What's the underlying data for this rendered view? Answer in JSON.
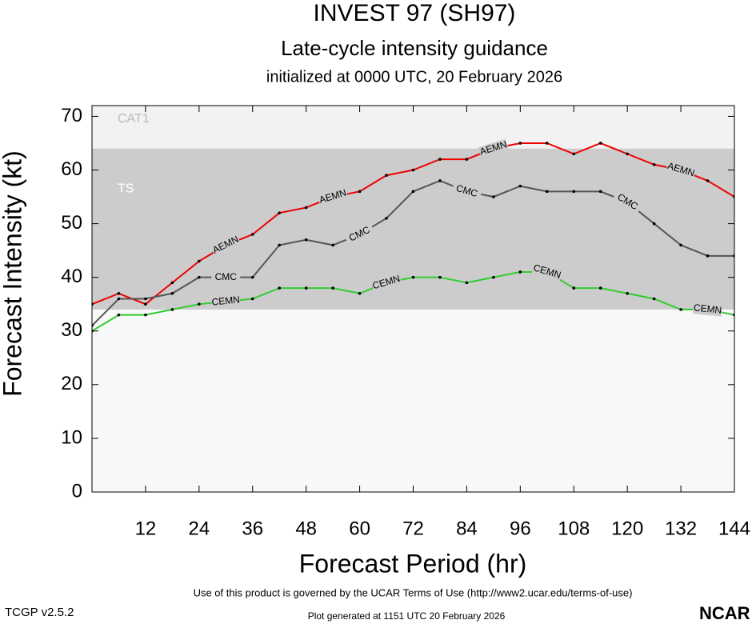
{
  "chart_data": {
    "type": "line",
    "title": "INVEST 97 (SH97)",
    "subtitle": "Late-cycle intensity guidance",
    "initialized": "initialized at 0000 UTC, 20 February 2026",
    "x_label": "Forecast Period (hr)",
    "y_label": "Forecast Intensity (kt)",
    "xlim": [
      0,
      144
    ],
    "ylim": [
      0,
      72
    ],
    "xticks": [
      12,
      24,
      36,
      48,
      60,
      72,
      84,
      96,
      108,
      120,
      132,
      144
    ],
    "yticks": [
      0,
      10,
      20,
      30,
      40,
      50,
      60,
      70
    ],
    "bands": [
      {
        "label": "TS",
        "from": 34,
        "color": "#cccccc"
      },
      {
        "label": "CAT1",
        "from": 64,
        "color": "#f2f2f2"
      }
    ],
    "x": [
      0,
      6,
      12,
      18,
      24,
      30,
      36,
      42,
      48,
      54,
      60,
      66,
      72,
      78,
      84,
      90,
      96,
      102,
      108,
      114,
      120,
      126,
      132,
      138,
      144
    ],
    "series": [
      {
        "name": "AEMN",
        "color": "#ee0000",
        "values": [
          35,
          37,
          35,
          39,
          43,
          46,
          48,
          52,
          53,
          55,
          56,
          59,
          60,
          62,
          62,
          64,
          65,
          65,
          63,
          65,
          63,
          61,
          60,
          58,
          55
        ]
      },
      {
        "name": "CMC",
        "color": "#555555",
        "values": [
          31,
          36,
          36,
          37,
          40,
          40,
          40,
          46,
          47,
          46,
          48,
          51,
          56,
          58,
          56,
          55,
          57,
          56,
          56,
          56,
          54,
          50,
          46,
          44,
          44
        ]
      },
      {
        "name": "CEMN",
        "color": "#33cc33",
        "values": [
          30,
          33,
          33,
          34,
          35,
          35.5,
          36,
          38,
          38,
          38,
          37,
          39,
          40,
          40,
          39,
          40,
          41,
          41,
          38,
          38,
          37,
          36,
          34,
          34,
          33
        ]
      }
    ],
    "footer": "Use of this product is governed by the UCAR Terms of Use (http://www2.ucar.edu/terms-of-use)",
    "version": "TCGP v2.5.2",
    "generated": "Plot generated at 1151 UTC   20 February 2026",
    "logo": "NCAR"
  }
}
